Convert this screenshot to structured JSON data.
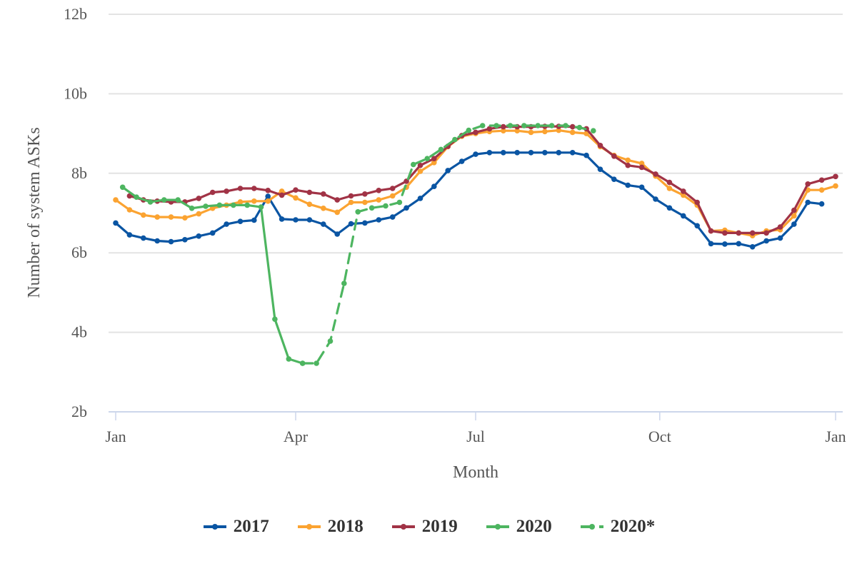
{
  "chart_data": {
    "type": "line",
    "title": "",
    "xlabel": "Month",
    "ylabel": "Number of system ASKs",
    "x_unit": "week of year",
    "x_range": [
      0,
      52
    ],
    "ylim": [
      2,
      12
    ],
    "y_ticks": [
      {
        "value": 2,
        "label": "2b"
      },
      {
        "value": 4,
        "label": "4b"
      },
      {
        "value": 6,
        "label": "6b"
      },
      {
        "value": 8,
        "label": "8b"
      },
      {
        "value": 10,
        "label": "10b"
      },
      {
        "value": 12,
        "label": "12b"
      }
    ],
    "x_ticks": [
      {
        "value": 0,
        "label": "Jan"
      },
      {
        "value": 13,
        "label": "Apr"
      },
      {
        "value": 26,
        "label": "Jul"
      },
      {
        "value": 39.3,
        "label": "Oct"
      },
      {
        "value": 52,
        "label": "Jan"
      }
    ],
    "grid": true,
    "legend_position": "bottom",
    "series": [
      {
        "name": "2017",
        "color": "#0A55A3",
        "dashed": false,
        "points": [
          [
            0,
            6.75
          ],
          [
            1,
            6.45
          ],
          [
            2,
            6.37
          ],
          [
            3,
            6.3
          ],
          [
            4,
            6.28
          ],
          [
            5,
            6.33
          ],
          [
            6,
            6.42
          ],
          [
            7,
            6.5
          ],
          [
            8,
            6.72
          ],
          [
            9,
            6.79
          ],
          [
            10,
            6.82
          ],
          [
            11,
            7.42
          ],
          [
            12,
            6.85
          ],
          [
            13,
            6.83
          ],
          [
            14,
            6.83
          ],
          [
            15,
            6.72
          ],
          [
            16,
            6.47
          ],
          [
            17,
            6.73
          ],
          [
            18,
            6.75
          ],
          [
            19,
            6.83
          ],
          [
            20,
            6.9
          ],
          [
            21,
            7.13
          ],
          [
            22,
            7.37
          ],
          [
            23,
            7.67
          ],
          [
            24,
            8.07
          ],
          [
            25,
            8.3
          ],
          [
            26,
            8.48
          ],
          [
            27,
            8.52
          ],
          [
            28,
            8.52
          ],
          [
            29,
            8.52
          ],
          [
            30,
            8.52
          ],
          [
            31,
            8.52
          ],
          [
            32,
            8.52
          ],
          [
            33,
            8.52
          ],
          [
            34,
            8.45
          ],
          [
            35,
            8.1
          ],
          [
            36,
            7.85
          ],
          [
            37,
            7.7
          ],
          [
            38,
            7.65
          ],
          [
            39,
            7.35
          ],
          [
            40,
            7.13
          ],
          [
            41,
            6.93
          ],
          [
            42,
            6.68
          ],
          [
            43,
            6.23
          ],
          [
            44,
            6.22
          ],
          [
            45,
            6.23
          ],
          [
            46,
            6.15
          ],
          [
            47,
            6.3
          ],
          [
            48,
            6.37
          ],
          [
            49,
            6.72
          ],
          [
            50,
            7.27
          ],
          [
            51,
            7.23
          ]
        ]
      },
      {
        "name": "2018",
        "color": "#FBA331",
        "dashed": false,
        "points": [
          [
            0,
            7.33
          ],
          [
            1,
            7.08
          ],
          [
            2,
            6.95
          ],
          [
            3,
            6.9
          ],
          [
            4,
            6.9
          ],
          [
            5,
            6.88
          ],
          [
            6,
            6.98
          ],
          [
            7,
            7.12
          ],
          [
            8,
            7.2
          ],
          [
            9,
            7.28
          ],
          [
            10,
            7.3
          ],
          [
            11,
            7.3
          ],
          [
            12,
            7.55
          ],
          [
            13,
            7.38
          ],
          [
            14,
            7.22
          ],
          [
            15,
            7.12
          ],
          [
            16,
            7.02
          ],
          [
            17,
            7.27
          ],
          [
            18,
            7.27
          ],
          [
            19,
            7.33
          ],
          [
            20,
            7.43
          ],
          [
            21,
            7.65
          ],
          [
            22,
            8.05
          ],
          [
            23,
            8.27
          ],
          [
            24,
            8.67
          ],
          [
            25,
            8.93
          ],
          [
            26,
            9.0
          ],
          [
            27,
            9.05
          ],
          [
            28,
            9.07
          ],
          [
            29,
            9.07
          ],
          [
            30,
            9.03
          ],
          [
            31,
            9.05
          ],
          [
            32,
            9.08
          ],
          [
            33,
            9.03
          ],
          [
            34,
            9.0
          ],
          [
            35,
            8.67
          ],
          [
            36,
            8.45
          ],
          [
            37,
            8.33
          ],
          [
            38,
            8.25
          ],
          [
            39,
            7.93
          ],
          [
            40,
            7.62
          ],
          [
            41,
            7.45
          ],
          [
            42,
            7.2
          ],
          [
            43,
            6.55
          ],
          [
            44,
            6.57
          ],
          [
            45,
            6.5
          ],
          [
            46,
            6.43
          ],
          [
            47,
            6.55
          ],
          [
            48,
            6.58
          ],
          [
            49,
            6.93
          ],
          [
            50,
            7.58
          ],
          [
            51,
            7.58
          ],
          [
            52,
            7.68
          ]
        ]
      },
      {
        "name": "2019",
        "color": "#A13346",
        "dashed": false,
        "points": [
          [
            1,
            7.43
          ],
          [
            2,
            7.33
          ],
          [
            3,
            7.3
          ],
          [
            4,
            7.28
          ],
          [
            5,
            7.28
          ],
          [
            6,
            7.37
          ],
          [
            7,
            7.52
          ],
          [
            8,
            7.55
          ],
          [
            9,
            7.62
          ],
          [
            10,
            7.62
          ],
          [
            11,
            7.57
          ],
          [
            12,
            7.45
          ],
          [
            13,
            7.58
          ],
          [
            14,
            7.52
          ],
          [
            15,
            7.48
          ],
          [
            16,
            7.33
          ],
          [
            17,
            7.43
          ],
          [
            18,
            7.48
          ],
          [
            19,
            7.57
          ],
          [
            20,
            7.62
          ],
          [
            21,
            7.8
          ],
          [
            22,
            8.2
          ],
          [
            23,
            8.37
          ],
          [
            24,
            8.68
          ],
          [
            25,
            8.95
          ],
          [
            26,
            9.03
          ],
          [
            27,
            9.12
          ],
          [
            28,
            9.17
          ],
          [
            29,
            9.17
          ],
          [
            30,
            9.17
          ],
          [
            31,
            9.18
          ],
          [
            32,
            9.18
          ],
          [
            33,
            9.17
          ],
          [
            34,
            9.12
          ],
          [
            35,
            8.7
          ],
          [
            36,
            8.43
          ],
          [
            37,
            8.2
          ],
          [
            38,
            8.15
          ],
          [
            39,
            7.98
          ],
          [
            40,
            7.77
          ],
          [
            41,
            7.55
          ],
          [
            42,
            7.27
          ],
          [
            43,
            6.55
          ],
          [
            44,
            6.5
          ],
          [
            45,
            6.5
          ],
          [
            46,
            6.5
          ],
          [
            47,
            6.5
          ],
          [
            48,
            6.65
          ],
          [
            49,
            7.07
          ],
          [
            50,
            7.73
          ],
          [
            51,
            7.83
          ],
          [
            52,
            7.92
          ]
        ]
      },
      {
        "name": "2020",
        "color": "#4DB560",
        "dashed": false,
        "points": [
          [
            0.5,
            7.65
          ],
          [
            1.5,
            7.4
          ],
          [
            2.5,
            7.28
          ],
          [
            3.5,
            7.33
          ],
          [
            4.5,
            7.33
          ],
          [
            5.5,
            7.12
          ],
          [
            6.5,
            7.17
          ],
          [
            7.5,
            7.2
          ],
          [
            8.5,
            7.2
          ],
          [
            9.5,
            7.2
          ],
          [
            10.5,
            7.15
          ],
          [
            11.5,
            4.33
          ],
          [
            12.5,
            3.33
          ],
          [
            13.5,
            3.22
          ]
        ]
      },
      {
        "name": "2020*",
        "color": "#4DB560",
        "dashed": true,
        "points": [
          [
            13.5,
            3.22
          ],
          [
            14.5,
            3.22
          ],
          [
            15.5,
            3.78
          ],
          [
            16.5,
            5.23
          ],
          [
            17.5,
            7.03
          ],
          [
            18.5,
            7.13
          ],
          [
            19.5,
            7.18
          ],
          [
            20.5,
            7.27
          ],
          [
            21.5,
            8.22
          ],
          [
            22.5,
            8.37
          ],
          [
            23.5,
            8.6
          ],
          [
            24.5,
            8.85
          ],
          [
            25.5,
            9.08
          ],
          [
            26.5,
            9.2
          ],
          [
            27.5,
            9.2
          ],
          [
            28.5,
            9.2
          ],
          [
            29.5,
            9.2
          ],
          [
            30.5,
            9.2
          ],
          [
            31.5,
            9.2
          ],
          [
            32.5,
            9.2
          ],
          [
            33.5,
            9.15
          ],
          [
            34.5,
            9.07
          ]
        ]
      }
    ]
  }
}
